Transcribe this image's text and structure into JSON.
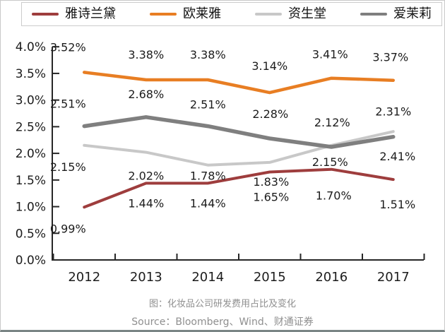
{
  "page": {
    "caption": "图：化妆品公司研发费用占比及变化",
    "source": "Source：Bloomberg、Wind、财通证券"
  },
  "chart_data": {
    "type": "line",
    "title": "图：化妆品公司研发费用占比及变化",
    "source": "Source：Bloomberg、Wind、财通证券",
    "categories": [
      "2012",
      "2013",
      "2014",
      "2015",
      "2016",
      "2017"
    ],
    "series": [
      {
        "key": "estee-lauder",
        "name": "雅诗兰黛",
        "color": "#9e3d3d",
        "values": [
          0.99,
          1.44,
          1.44,
          1.65,
          1.7,
          1.51
        ],
        "label_side": "below"
      },
      {
        "key": "loreal",
        "name": "欧莱雅",
        "color": "#e87e23",
        "values": [
          3.52,
          3.38,
          3.38,
          3.14,
          3.41,
          3.37
        ],
        "label_side": "above"
      },
      {
        "key": "shiseido",
        "name": "资生堂",
        "color": "#c8c8c8",
        "values": [
          2.15,
          2.02,
          1.78,
          1.83,
          2.15,
          2.41
        ],
        "label_side": "below"
      },
      {
        "key": "amorepacific",
        "name": "爱茉莉",
        "color": "#7f7f7f",
        "values": [
          2.51,
          2.68,
          2.51,
          2.28,
          2.12,
          2.31
        ],
        "label_side": "above"
      }
    ],
    "xlabel": "",
    "ylabel": "",
    "ylim": [
      0,
      4
    ],
    "ytick_step": 0.5,
    "ytick_format": "0.0%",
    "datalabel_format": "0.00%",
    "grid": false,
    "legend_position": "top",
    "label_offsets": [
      [
        [
          -23,
          30
        ],
        [
          0,
          28
        ],
        [
          0,
          28
        ],
        [
          2,
          35
        ],
        [
          3,
          37
        ],
        [
          6,
          35
        ]
      ],
      [
        [
          -23,
          -36
        ],
        [
          0,
          -36
        ],
        [
          0,
          -36
        ],
        [
          0,
          -38
        ],
        [
          -2,
          -34
        ],
        [
          -4,
          -33
        ]
      ],
      [
        [
          -23,
          30
        ],
        [
          0,
          33
        ],
        [
          0,
          15
        ],
        [
          2,
          27
        ],
        [
          -2,
          23
        ],
        [
          6,
          35
        ]
      ],
      [
        [
          -23,
          -32
        ],
        [
          0,
          -33
        ],
        [
          0,
          -31
        ],
        [
          1,
          -35
        ],
        [
          1,
          -35
        ],
        [
          0,
          -36
        ]
      ]
    ],
    "draw_order": [
      2,
      3,
      1,
      0
    ],
    "stroke_widths": [
      4,
      4.5,
      4,
      5.5
    ]
  }
}
